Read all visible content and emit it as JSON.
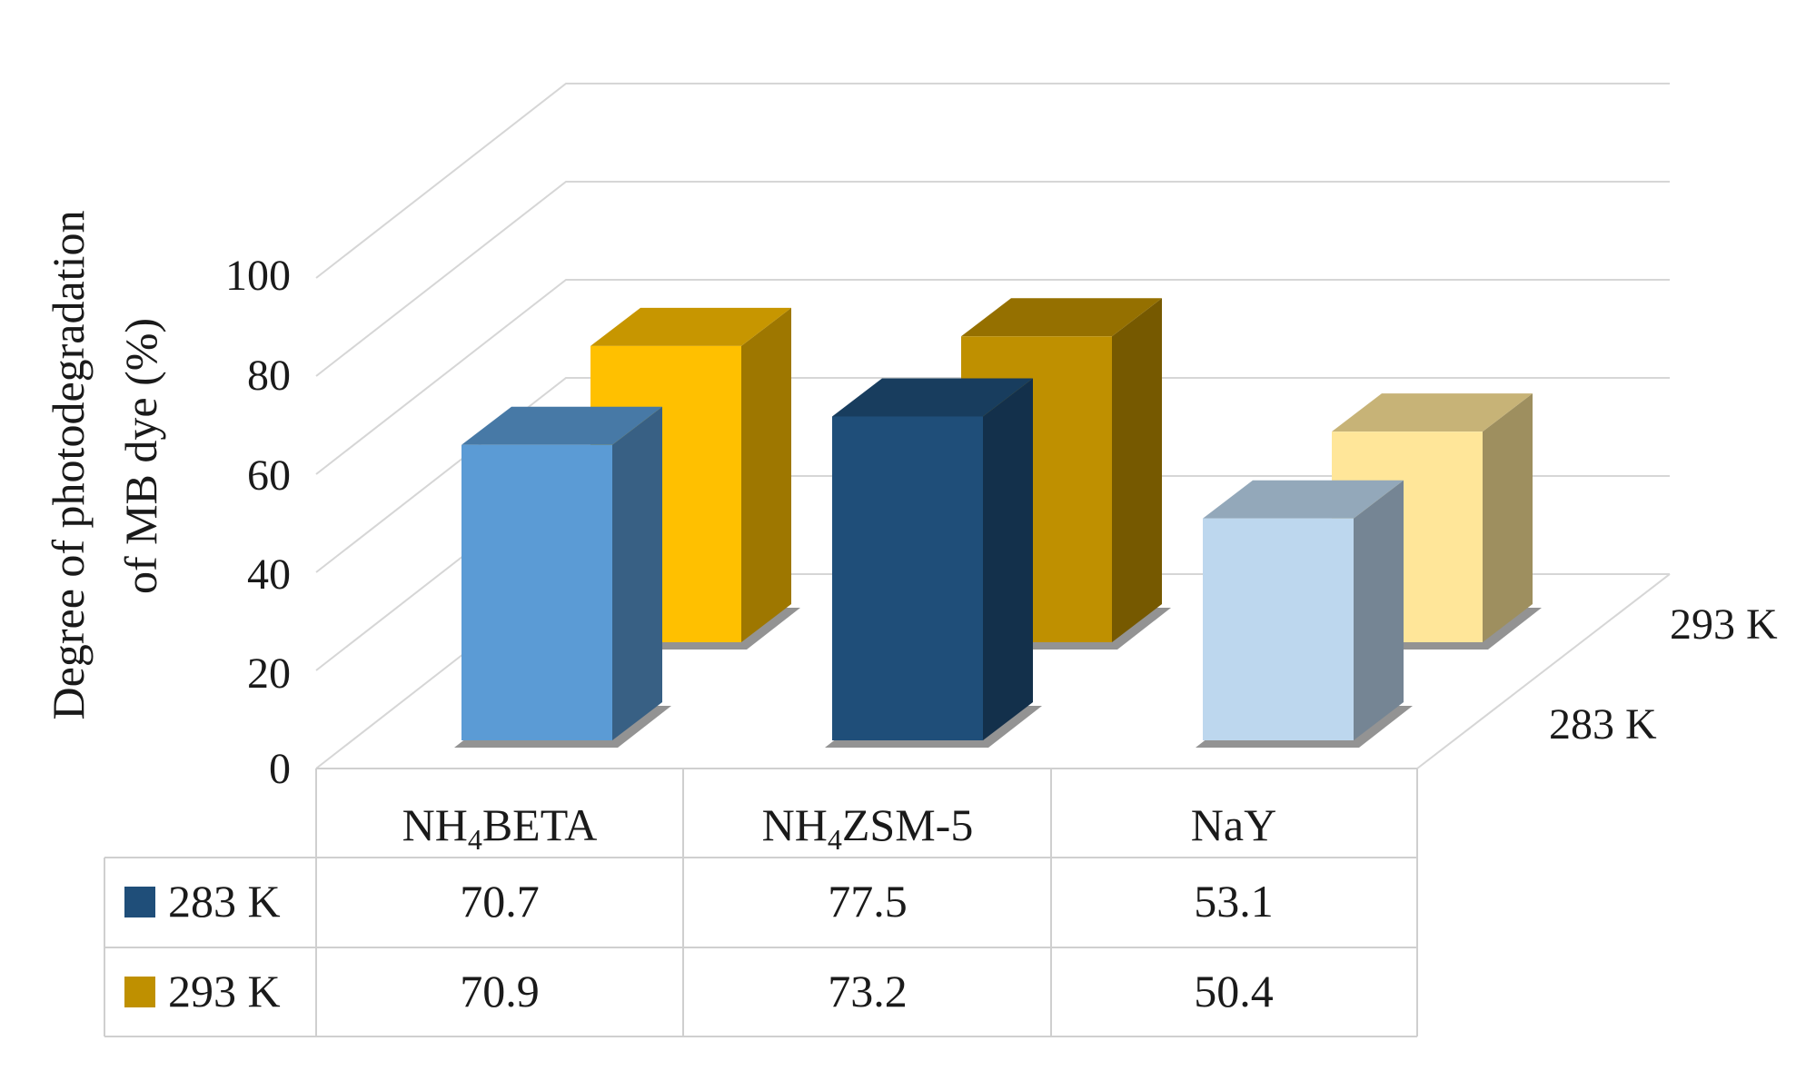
{
  "chart_data": {
    "type": "bar",
    "variant": "3d-clustered-with-data-table",
    "title": "",
    "ylabel_line1": "Degree of photodegradation",
    "ylabel_line2": "of  MB dye (%)",
    "ylim": [
      0,
      100
    ],
    "yticks": [
      "0",
      "20",
      "40",
      "60",
      "80",
      "100"
    ],
    "categories": [
      {
        "base": "NH",
        "sub": "4",
        "rest": "BETA"
      },
      {
        "base": "NH",
        "sub": "4",
        "rest": "ZSM-5"
      },
      {
        "base": "NaY",
        "sub": "",
        "rest": ""
      }
    ],
    "series": [
      {
        "name": "283 K",
        "values": [
          70.7,
          77.5,
          53.1
        ],
        "value_labels": [
          "70.7",
          "77.5",
          "53.1"
        ],
        "legend_color": "#1f4e79"
      },
      {
        "name": "293 K",
        "values": [
          70.9,
          73.2,
          50.4
        ],
        "value_labels": [
          "70.9",
          "73.2",
          "50.4"
        ],
        "legend_color": "#bf9000"
      }
    ],
    "depth_axis_labels": [
      "293 K",
      "283 K"
    ],
    "bar_colors": {
      "283 K": [
        "#5b9bd5",
        "#1f4e79",
        "#bdd7ee"
      ],
      "293 K": [
        "#ffc000",
        "#bf9000",
        "#ffe699"
      ]
    },
    "grid": true,
    "legend": "data-table"
  }
}
